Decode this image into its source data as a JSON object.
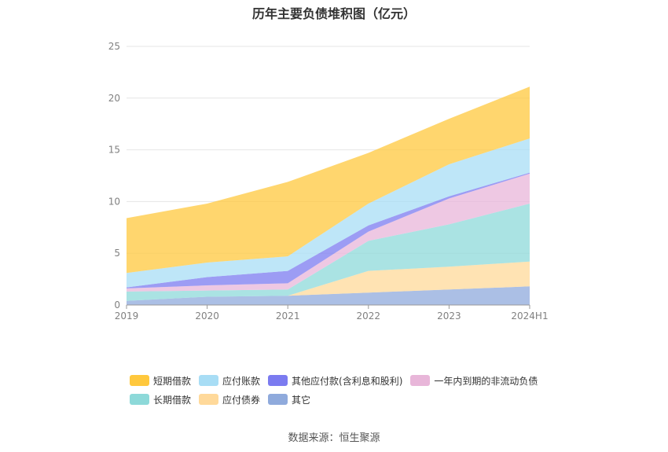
{
  "chart_data": {
    "type": "area",
    "title": "历年主要负债堆积图（亿元）",
    "categories": [
      "2019",
      "2020",
      "2021",
      "2022",
      "2023",
      "2024H1"
    ],
    "ylim": [
      0,
      25
    ],
    "yticks": [
      "0",
      "5",
      "10",
      "15",
      "20",
      "25"
    ],
    "grid": true,
    "legend_position": "bottom",
    "stacked": true,
    "series": [
      {
        "name": "其它",
        "color": "#8FAADC",
        "values": [
          0.4,
          0.8,
          0.9,
          1.2,
          1.5,
          1.8
        ]
      },
      {
        "name": "应付债券",
        "color": "#FFD99A",
        "values": [
          0.0,
          0.0,
          0.0,
          2.1,
          2.2,
          2.4
        ]
      },
      {
        "name": "长期借款",
        "color": "#8DD9D9",
        "values": [
          0.9,
          0.6,
          0.6,
          2.9,
          4.1,
          5.6
        ]
      },
      {
        "name": "一年内到期的非流动负债",
        "color": "#E8B6D9",
        "values": [
          0.3,
          0.5,
          0.6,
          0.9,
          2.5,
          2.9
        ]
      },
      {
        "name": "其他应付款(含利息和股利)",
        "color": "#7B7BF0",
        "values": [
          0.1,
          0.8,
          1.2,
          0.6,
          0.2,
          0.1
        ]
      },
      {
        "name": "应付账款",
        "color": "#A8DDF5",
        "values": [
          1.4,
          1.4,
          1.4,
          2.1,
          3.1,
          3.3
        ]
      },
      {
        "name": "短期借款",
        "color": "#FFC83D",
        "values": [
          5.3,
          5.7,
          7.2,
          4.9,
          4.4,
          5.0
        ]
      }
    ],
    "legend_rows": [
      [
        "短期借款",
        "应付账款",
        "其他应付款(含利息和股利)",
        "一年内到期的非流动负债"
      ],
      [
        "长期借款",
        "应付债券",
        "其它"
      ]
    ]
  },
  "footer": {
    "source": "数据来源：恒生聚源"
  }
}
